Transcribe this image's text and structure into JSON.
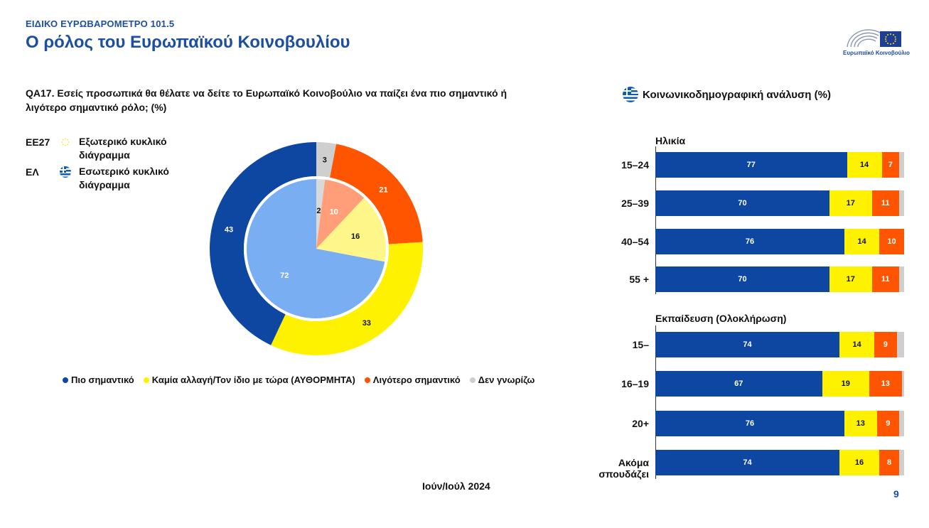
{
  "header": {
    "eyebrow": "ΕΙΔΙΚΟ ΕΥΡΩΒΑΡΟΜΕΤΡΟ 101.5",
    "title": "Ο ρόλος του Ευρωπαϊκού Κοινοβουλίου",
    "logo_caption": "Ευρωπαϊκό Κοινοβούλιο"
  },
  "question": "QA17. Εσείς προσωπικά θα θέλατε να δείτε το Ευρωπαϊκό Κοινοβούλιο να παίζει ένα πιο σημαντικό ή λιγότερο σημαντικό ρόλο; (%)",
  "key": {
    "outer_code": "ΕΕ27",
    "outer_label": "Εξωτερικό κυκλικό διάγραμμα",
    "inner_code": "ΕΛ",
    "inner_label": "Εσωτερικό κυκλικό διάγραμμα"
  },
  "colors": {
    "blue": "#0e47a1",
    "yellow": "#fff200",
    "orange": "#ff5400",
    "grey": "#cfcfcf",
    "inner_blue": "#7aaef2",
    "inner_yellow": "#fff68a",
    "inner_orange": "#ff9e78",
    "inner_grey": "#d9d9d9",
    "accent": "#1c4fa0"
  },
  "legend": [
    {
      "label": "Πιο σημαντικό",
      "color": "#0e47a1"
    },
    {
      "label": "Καμία αλλαγή/Τον ίδιο με τώρα (ΑΥΘΟΡΜΗΤΑ)",
      "color": "#fff200"
    },
    {
      "label": "Λιγότερο σημαντικό",
      "color": "#ff5400"
    },
    {
      "label": "Δεν γνωρίζω",
      "color": "#cfcfcf"
    }
  ],
  "date": "Ιούν/Ιούλ 2024",
  "page_number": "9",
  "right_panel": {
    "title": "Κοινωνικοδημογραφική ανάλυση (%)",
    "age_title": "Ηλικία",
    "education_title": "Εκπαίδευση (Ολοκλήρωση)"
  },
  "chart_data": [
    {
      "type": "pie",
      "subtype": "donut",
      "ring": "outer",
      "categories": [
        "Πιο σημαντικό",
        "Καμία αλλαγή/Τον ίδιο με τώρα (ΑΥΘΟΡΜΗΤΑ)",
        "Λιγότερο σημαντικό",
        "Δεν γνωρίζω"
      ],
      "values": [
        43,
        33,
        21,
        3
      ]
    },
    {
      "type": "pie",
      "ring": "inner",
      "categories": [
        "Πιο σημαντικό",
        "Καμία αλλαγή/Τον ίδιο με τώρα (ΑΥΘΟΡΜΗΤΑ)",
        "Λιγότερο σημαντικό",
        "Δεν γνωρίζω"
      ],
      "values": [
        72,
        16,
        10,
        2
      ]
    },
    {
      "type": "bar",
      "orientation": "horizontal",
      "stacked": true,
      "title": "Ηλικία",
      "categories": [
        "15–24",
        "25–39",
        "40–54",
        "55 +"
      ],
      "series": [
        {
          "name": "Πιο σημαντικό",
          "values": [
            77,
            70,
            76,
            70
          ]
        },
        {
          "name": "Καμία αλλαγή/Τον ίδιο με τώρα (ΑΥΘΟΡΜΗΤΑ)",
          "values": [
            14,
            17,
            14,
            17
          ]
        },
        {
          "name": "Λιγότερο σημαντικό",
          "values": [
            7,
            11,
            10,
            11
          ]
        },
        {
          "name": "Δεν γνωρίζω",
          "values": [
            2,
            2,
            0,
            2
          ]
        }
      ]
    },
    {
      "type": "bar",
      "orientation": "horizontal",
      "stacked": true,
      "title": "Εκπαίδευση (Ολοκλήρωση)",
      "categories": [
        "15–",
        "16–19",
        "20+",
        "Ακόμα σπουδάζει"
      ],
      "series": [
        {
          "name": "Πιο σημαντικό",
          "values": [
            74,
            67,
            76,
            74
          ]
        },
        {
          "name": "Καμία αλλαγή/Τον ίδιο με τώρα (ΑΥΘΟΡΜΗΤΑ)",
          "values": [
            14,
            19,
            13,
            16
          ]
        },
        {
          "name": "Λιγότερο σημαντικό",
          "values": [
            9,
            13,
            9,
            8
          ]
        },
        {
          "name": "Δεν γνωρίζω",
          "values": [
            3,
            1,
            2,
            2
          ]
        }
      ]
    }
  ]
}
